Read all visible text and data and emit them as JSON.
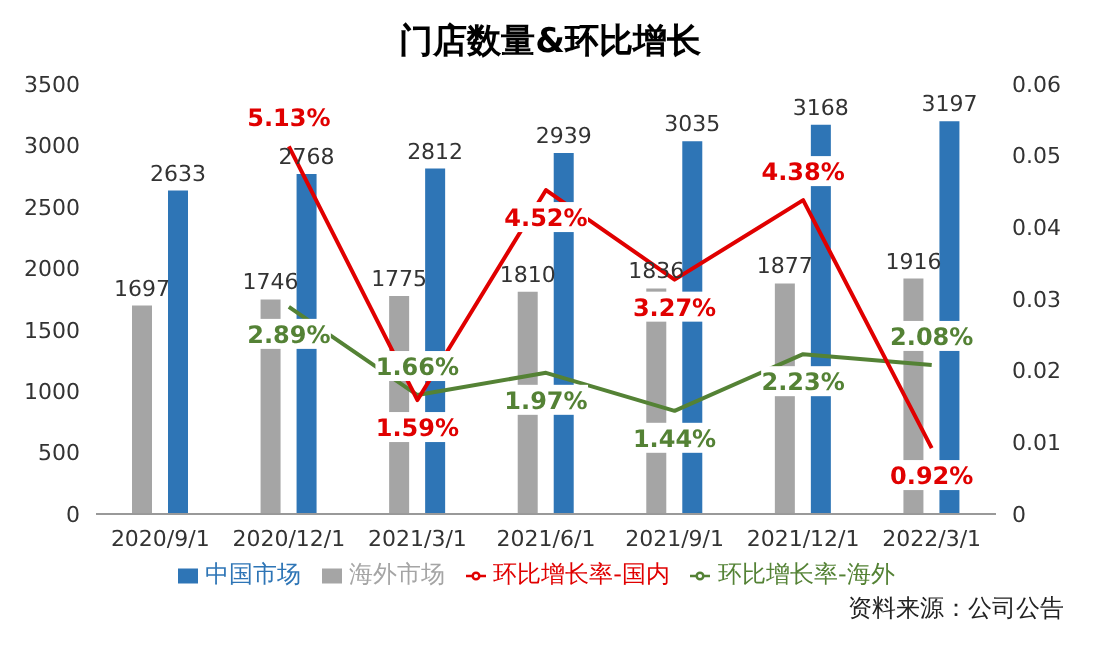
{
  "chart_data": {
    "type": "bar",
    "title": "门店数量&环比增长",
    "categories": [
      "2020/9/1",
      "2020/12/1",
      "2021/3/1",
      "2021/6/1",
      "2021/9/1",
      "2021/12/1",
      "2022/3/1"
    ],
    "series": [
      {
        "name": "海外市场",
        "color": "#a5a5a5",
        "values": [
          1697,
          1746,
          1775,
          1810,
          1836,
          1877,
          1916
        ],
        "value_labels": [
          "1697",
          "1746",
          "1775",
          "1810",
          "1836",
          "1877",
          "1916"
        ]
      },
      {
        "name": "中国市场",
        "color": "#2e75b6",
        "values": [
          2633,
          2768,
          2812,
          2939,
          3035,
          3168,
          3197
        ],
        "value_labels": [
          "2633",
          "2768",
          "2812",
          "2939",
          "3035",
          "3168",
          "3197"
        ]
      },
      {
        "name": "环比增长率-海外",
        "type": "line",
        "axis": "y2",
        "color": "#548235",
        "values": [
          null,
          0.0289,
          0.0166,
          0.0197,
          0.0144,
          0.0223,
          0.0208
        ],
        "value_labels": [
          null,
          "2.89%",
          "1.66%",
          "1.97%",
          "1.44%",
          "2.23%",
          "2.08%"
        ]
      },
      {
        "name": "环比增长率-国内",
        "type": "line",
        "axis": "y2",
        "color": "#e00000",
        "values": [
          null,
          0.0513,
          0.0159,
          0.0452,
          0.0327,
          0.0438,
          0.0092
        ],
        "value_labels": [
          null,
          "5.13%",
          "1.59%",
          "4.52%",
          "3.27%",
          "4.38%",
          "0.92%"
        ]
      }
    ],
    "ylim": [
      0,
      3500
    ],
    "yticks": [
      0,
      500,
      1000,
      1500,
      2000,
      2500,
      3000,
      3500
    ],
    "y2lim": [
      0,
      0.06
    ],
    "y2ticks": [
      0,
      0.01,
      0.02,
      0.03,
      0.04,
      0.05,
      0.06
    ],
    "grid": false,
    "legend": "bottom",
    "marker": "none",
    "line_style": "solid",
    "annotations": [
      "资料来源：公司公告"
    ]
  }
}
